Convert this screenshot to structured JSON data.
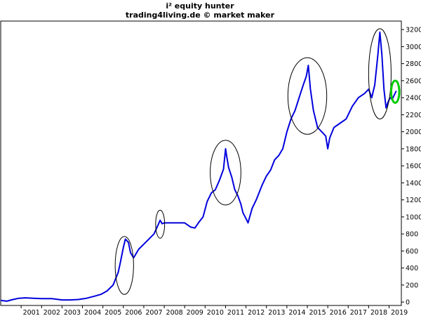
{
  "chart_data": {
    "type": "line",
    "title": "i² equity hunter",
    "subtitle": "trading4living.de © market maker",
    "xlabel": "",
    "ylabel": "",
    "x_tick_labels": [
      "2001",
      "2002",
      "2003",
      "2004",
      "2005",
      "2006",
      "2007",
      "2008",
      "2009",
      "2010",
      "2011",
      "2012",
      "2013",
      "2014",
      "2015",
      "2016",
      "2017",
      "2018",
      "2019"
    ],
    "y_tick_labels": [
      "0",
      "200",
      "400",
      "600",
      "800",
      "1000",
      "1200",
      "1400",
      "1600",
      "1800",
      "2000",
      "2200",
      "2400",
      "2600",
      "2800",
      "3000",
      "3200"
    ],
    "xlim": [
      2000.0,
      2019.6
    ],
    "ylim": [
      -40,
      3300
    ],
    "y_axis_position": "right",
    "grid": false,
    "series": [
      {
        "color": "#0000dd",
        "x": [
          2000.0,
          2000.3,
          2000.6,
          2000.9,
          2001.2,
          2001.6,
          2002.0,
          2002.5,
          2003.0,
          2003.4,
          2003.8,
          2004.2,
          2004.6,
          2004.9,
          2005.2,
          2005.5,
          2005.75,
          2005.85,
          2006.0,
          2006.1,
          2006.25,
          2006.35,
          2006.5,
          2006.6,
          2006.75,
          2007.0,
          2007.25,
          2007.5,
          2007.65,
          2007.8,
          2007.9,
          2008.0,
          2008.5,
          2009.0,
          2009.3,
          2009.5,
          2009.7,
          2009.9,
          2010.1,
          2010.3,
          2010.5,
          2010.7,
          2010.9,
          2011.0,
          2011.05,
          2011.15,
          2011.3,
          2011.45,
          2011.6,
          2011.75,
          2011.85,
          2012.0,
          2012.1,
          2012.3,
          2012.5,
          2012.8,
          2013.0,
          2013.2,
          2013.4,
          2013.6,
          2013.8,
          2014.0,
          2014.2,
          2014.4,
          2014.6,
          2014.8,
          2014.95,
          2015.05,
          2015.15,
          2015.3,
          2015.5,
          2015.7,
          2015.9,
          2016.0,
          2016.1,
          2016.3,
          2016.6,
          2016.9,
          2017.2,
          2017.5,
          2017.8,
          2018.0,
          2018.15,
          2018.3,
          2018.45,
          2018.55,
          2018.65,
          2018.75,
          2018.85,
          2018.95,
          2019.05,
          2019.15,
          2019.25,
          2019.35
        ],
        "y": [
          20,
          10,
          30,
          45,
          50,
          45,
          40,
          40,
          25,
          25,
          30,
          45,
          70,
          90,
          130,
          200,
          350,
          460,
          640,
          740,
          700,
          580,
          520,
          560,
          620,
          680,
          740,
          800,
          880,
          960,
          920,
          930,
          930,
          930,
          880,
          870,
          940,
          1000,
          1180,
          1280,
          1320,
          1430,
          1560,
          1800,
          1720,
          1580,
          1470,
          1320,
          1250,
          1150,
          1050,
          980,
          930,
          1100,
          1200,
          1380,
          1480,
          1550,
          1670,
          1720,
          1800,
          2000,
          2150,
          2250,
          2400,
          2550,
          2650,
          2780,
          2500,
          2250,
          2050,
          2000,
          1950,
          1800,
          1930,
          2050,
          2100,
          2150,
          2300,
          2400,
          2450,
          2500,
          2400,
          2550,
          2900,
          3170,
          2900,
          2500,
          2280,
          2350,
          2400,
          2380,
          2430,
          2480
        ]
      }
    ],
    "annotations": [
      {
        "shape": "ellipse",
        "color": "#000000",
        "center_x": 2006.05,
        "center_y": 430,
        "radius_x": 0.45,
        "radius_y": 340
      },
      {
        "shape": "ellipse",
        "color": "#000000",
        "center_x": 2007.8,
        "center_y": 915,
        "radius_x": 0.22,
        "radius_y": 165
      },
      {
        "shape": "ellipse",
        "color": "#000000",
        "center_x": 2011.0,
        "center_y": 1520,
        "radius_x": 0.75,
        "radius_y": 380
      },
      {
        "shape": "ellipse",
        "color": "#000000",
        "center_x": 2015.0,
        "center_y": 2420,
        "radius_x": 0.95,
        "radius_y": 450
      },
      {
        "shape": "ellipse",
        "color": "#000000",
        "center_x": 2018.55,
        "center_y": 2680,
        "radius_x": 0.55,
        "radius_y": 530
      },
      {
        "shape": "ellipse",
        "color": "#00cc00",
        "center_x": 2019.3,
        "center_y": 2470,
        "radius_x": 0.2,
        "radius_y": 130
      }
    ]
  }
}
